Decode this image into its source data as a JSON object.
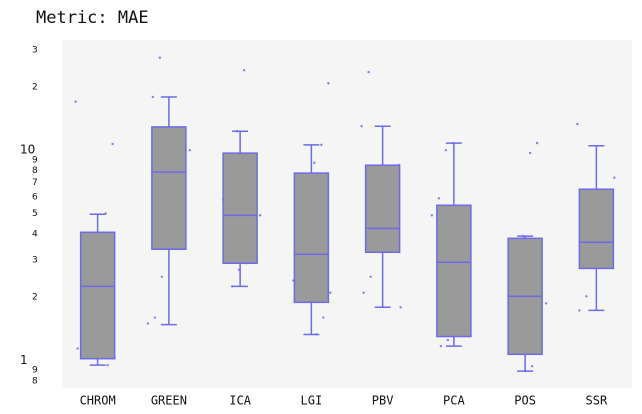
{
  "chart_data": {
    "type": "box",
    "title": "Metric: MAE",
    "categories": [
      "CHROM",
      "GREEN",
      "ICA",
      "LGI",
      "PBV",
      "PCA",
      "POS",
      "SSR"
    ],
    "boxes": [
      {
        "min": 0.95,
        "q1": 1.02,
        "median": 2.25,
        "q3": 4.07,
        "max": 4.96,
        "points": [
          17,
          10.7,
          5,
          3.2,
          2.3,
          2.2,
          1.14,
          1.03,
          0.95
        ]
      },
      {
        "min": 1.48,
        "q1": 3.38,
        "median": 7.86,
        "q3": 12.9,
        "max": 17.9,
        "points": [
          27.5,
          17.9,
          10,
          8.7,
          7.6,
          4,
          2.5,
          1.6,
          1.5
        ]
      },
      {
        "min": 2.25,
        "q1": 2.9,
        "median": 4.9,
        "q3": 9.68,
        "max": 12.3,
        "points": [
          24,
          12.3,
          8.9,
          5.8,
          4.9,
          4.2,
          2.9,
          2.7,
          2.25
        ]
      },
      {
        "min": 1.33,
        "q1": 1.89,
        "median": 3.2,
        "q3": 7.78,
        "max": 10.6,
        "points": [
          20.8,
          10.6,
          8.7,
          4.2,
          3.1,
          2.4,
          2.1,
          1.6,
          1.33
        ]
      },
      {
        "min": 1.79,
        "q1": 3.27,
        "median": 4.25,
        "q3": 8.48,
        "max": 13,
        "points": [
          23.5,
          13,
          8.5,
          4.1,
          4.1,
          3.4,
          2.5,
          2.1,
          1.79
        ]
      },
      {
        "min": 1.17,
        "q1": 1.3,
        "median": 2.93,
        "q3": 5.47,
        "max": 10.8,
        "points": [
          10.8,
          10,
          5.9,
          4.9,
          2.9,
          1.93,
          1.36,
          1.25,
          1.17
        ]
      },
      {
        "min": 0.89,
        "q1": 1.07,
        "median": 2.02,
        "q3": 3.81,
        "max": 3.9,
        "points": [
          10.8,
          9.7,
          3.9,
          3.6,
          2.2,
          1.87,
          1.14,
          0.94,
          0.89
        ]
      },
      {
        "min": 1.73,
        "q1": 2.74,
        "median": 3.65,
        "q3": 6.52,
        "max": 10.5,
        "points": [
          13.3,
          7.4,
          4,
          3.65,
          3.2,
          2.02,
          1.73
        ]
      }
    ],
    "box_color": "#9a9a9a",
    "line_color": "#6b6bea",
    "point_color": "#7f7ff0",
    "log_y": true,
    "ylim": [
      0.74,
      33.4
    ],
    "yticks": [
      {
        "value": 30,
        "label": "3"
      },
      {
        "value": 20,
        "label": "2"
      },
      10,
      9,
      8,
      7,
      6,
      5,
      4,
      3,
      2,
      1,
      {
        "value": 0.9,
        "label": "9"
      },
      {
        "value": 0.8,
        "label": "8"
      }
    ]
  }
}
